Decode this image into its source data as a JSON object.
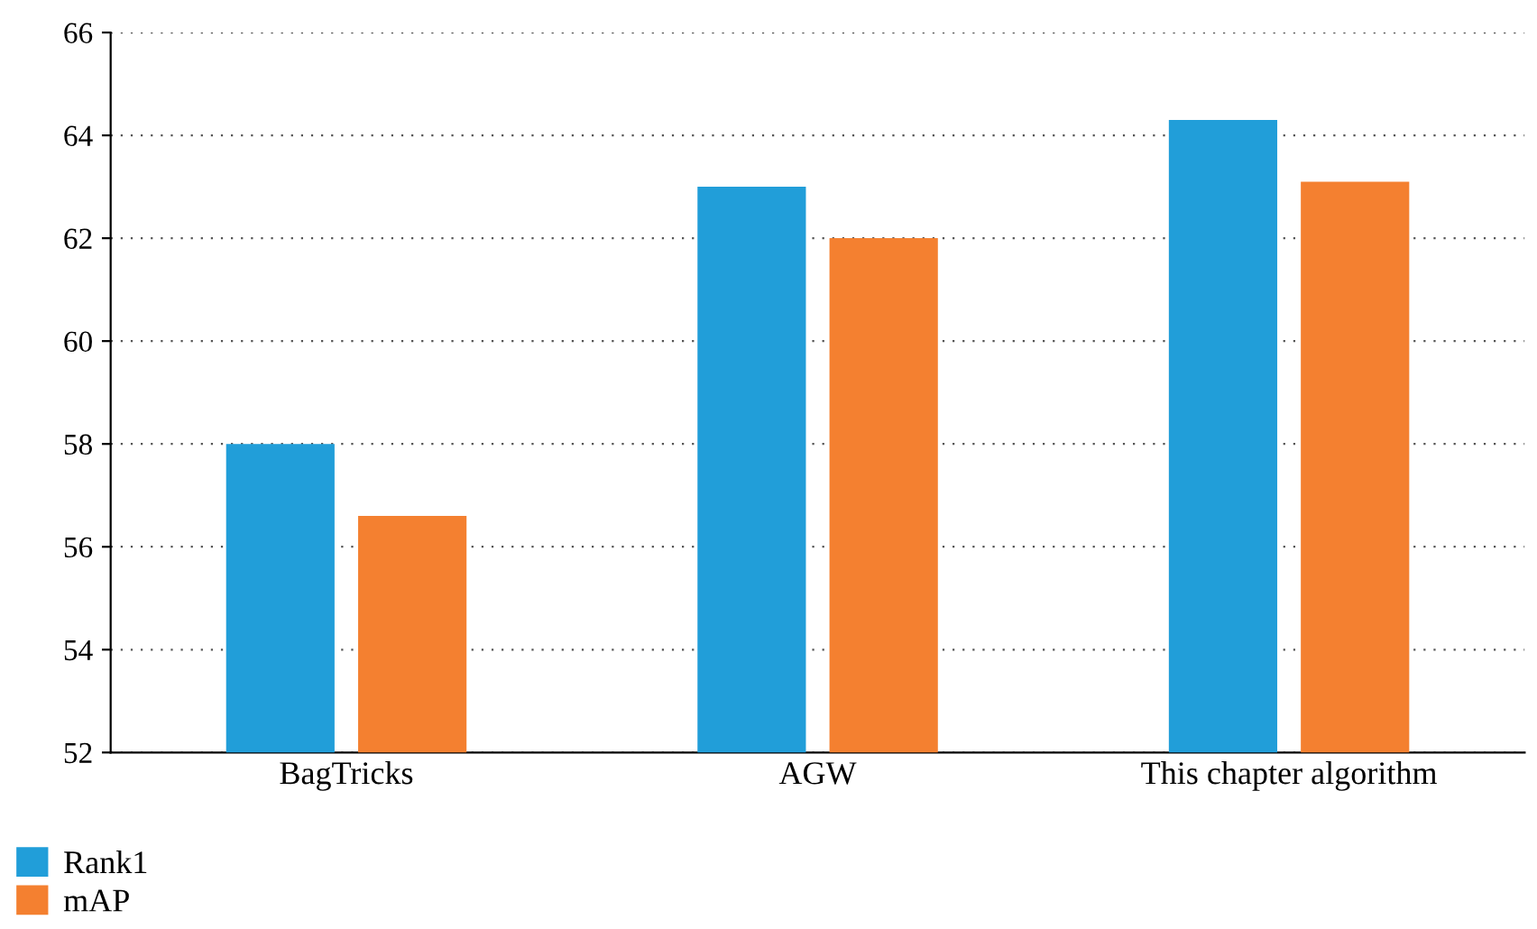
{
  "chart_data": {
    "type": "bar",
    "categories": [
      "BagTricks",
      "AGW",
      "This chapter algorithm"
    ],
    "series": [
      {
        "name": "Rank1",
        "color": "#219ed9",
        "values": [
          58.0,
          63.0,
          64.3
        ]
      },
      {
        "name": "mAP",
        "color": "#f48030",
        "values": [
          56.6,
          62.0,
          63.1
        ]
      }
    ],
    "ylim": [
      52,
      66
    ],
    "yticks": [
      52,
      54,
      56,
      58,
      60,
      62,
      64,
      66
    ],
    "grid": "y",
    "legend": "bottom left"
  }
}
